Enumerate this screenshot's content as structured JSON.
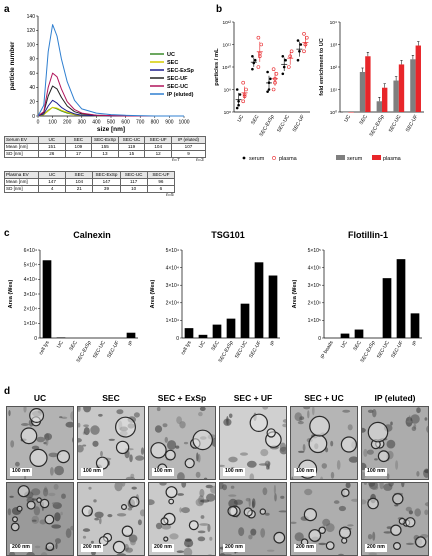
{
  "panels": {
    "a": "a",
    "b": "b",
    "c": "c",
    "d": "d"
  },
  "colors": {
    "UC": "#3b8a2a",
    "SEC": "#d4cc00",
    "SEC-ExSp": "#1f1f8f",
    "SEC-UF": "#222222",
    "SEC-UC": "#b0145a",
    "IP (eluted)": "#2f7fd0",
    "serum": "#000000",
    "plasma": "#e8262a",
    "bar_serum": "#7f7f7f",
    "bar_plasma": "#e8262a"
  },
  "chart_data": [
    {
      "id": "a-nta",
      "type": "line",
      "xlabel": "size [nm]",
      "ylabel": "particle number",
      "xlim": [
        0,
        1000
      ],
      "ylim": [
        0,
        140
      ],
      "x_ticks": [
        0,
        100,
        200,
        300,
        400,
        500,
        600,
        700,
        800,
        900,
        1000
      ],
      "y_ticks": [
        0,
        20,
        40,
        60,
        80,
        100,
        120,
        140
      ],
      "legend_position": "right",
      "x": [
        0,
        40,
        70,
        100,
        130,
        160,
        200,
        250,
        300,
        400,
        500,
        600,
        800,
        1000
      ],
      "series": [
        {
          "name": "UC",
          "values": [
            0,
            2,
            8,
            12,
            10,
            7,
            4,
            2,
            1,
            0.5,
            0,
            0,
            0,
            0
          ]
        },
        {
          "name": "SEC",
          "values": [
            0,
            2,
            7,
            12,
            11,
            8,
            5,
            2,
            1,
            0.5,
            0,
            0,
            0,
            0
          ]
        },
        {
          "name": "SEC-ExSp",
          "values": [
            0,
            3,
            14,
            22,
            18,
            12,
            7,
            3,
            1,
            0.5,
            0,
            0,
            0,
            0
          ]
        },
        {
          "name": "SEC-UF",
          "values": [
            0,
            5,
            28,
            42,
            38,
            26,
            14,
            6,
            3,
            1,
            0.5,
            0,
            0,
            0
          ]
        },
        {
          "name": "SEC-UC",
          "values": [
            0,
            6,
            40,
            60,
            55,
            38,
            20,
            9,
            4,
            1,
            0.5,
            0,
            0,
            0
          ]
        },
        {
          "name": "IP (eluted)",
          "values": [
            0,
            15,
            90,
            128,
            112,
            80,
            48,
            22,
            10,
            4,
            2,
            1,
            0,
            0
          ]
        }
      ]
    },
    {
      "id": "b-particles",
      "type": "scatter",
      "ylabel": "particles / mL",
      "y_scale": "log",
      "y_ticks": [
        "10⁸",
        "10⁹",
        "10¹⁰",
        "10¹¹",
        "10¹²"
      ],
      "categories": [
        "UC",
        "SEC",
        "SEC-ExSp",
        "SEC-UC",
        "SEC-UF"
      ],
      "legend": [
        "serum",
        "plasma"
      ],
      "series": [
        {
          "name": "serum",
          "values": [
            [
              150000000.0,
              300000000.0,
              600000000.0,
              1000000000.0,
              200000000.0
            ],
            [
              8000000000.0,
              15000000000.0,
              20000000000.0,
              30000000000.0
            ],
            [
              800000000.0,
              2000000000.0,
              3000000000.0,
              6000000000.0,
              1000000000.0
            ],
            [
              5000000000.0,
              10000000000.0,
              20000000000.0,
              30000000000.0
            ],
            [
              20000000000.0,
              50000000000.0,
              100000000000.0,
              150000000000.0
            ]
          ]
        },
        {
          "name": "plasma",
          "values": [
            [
              300000000.0,
              600000000.0,
              1000000000.0,
              2000000000.0,
              500000000.0
            ],
            [
              10000000000.0,
              30000000000.0,
              100000000000.0,
              200000000000.0,
              40000000000.0
            ],
            [
              1000000000.0,
              3000000000.0,
              5000000000.0,
              8000000000.0,
              2000000000.0
            ],
            [
              10000000000.0,
              30000000000.0,
              50000000000.0
            ],
            [
              50000000000.0,
              100000000000.0,
              200000000000.0,
              300000000000.0,
              100000000000.0
            ]
          ]
        }
      ]
    },
    {
      "id": "b-fold",
      "type": "bar",
      "ylabel": "fold enrichment to UC",
      "y_scale": "log",
      "y_ticks": [
        "10⁰",
        "10¹",
        "10²",
        "10³",
        "10⁴"
      ],
      "categories": [
        "UC",
        "SEC",
        "SEC-ExSp",
        "SEC-UC",
        "SEC-UF"
      ],
      "legend": [
        "serum",
        "plasma"
      ],
      "series": [
        {
          "name": "serum",
          "values": [
            1,
            60,
            3,
            25,
            220
          ]
        },
        {
          "name": "plasma",
          "values": [
            1,
            300,
            12,
            130,
            900
          ]
        }
      ]
    },
    {
      "id": "c-calnexin",
      "type": "bar",
      "title": "Calnexin",
      "ylabel": "Area (Wes)",
      "ylim": [
        0,
        60000
      ],
      "y_ticks": [
        "0",
        "1×10⁴",
        "2×10⁴",
        "3×10⁴",
        "4×10⁴",
        "5×10⁴",
        "6×10⁴"
      ],
      "categories": [
        "cell lys",
        "UC",
        "SEC",
        "SEC-ExSp",
        "SEC-UC",
        "SEC-UF",
        "IP"
      ],
      "values": [
        53000,
        400,
        0,
        0,
        0,
        0,
        3600
      ]
    },
    {
      "id": "c-tsg101",
      "type": "bar",
      "title": "TSG101",
      "ylabel": "Area (Wes)",
      "ylim": [
        0,
        50000
      ],
      "y_ticks": [
        "0",
        "1×10⁴",
        "2×10⁴",
        "3×10⁴",
        "4×10⁴",
        "5×10⁴"
      ],
      "categories": [
        "cell lys",
        "UC",
        "SEC",
        "SEC-ExSp",
        "SEC-UC",
        "SEC-UF",
        "IP"
      ],
      "values": [
        5600,
        1800,
        7600,
        11000,
        19500,
        43000,
        35500
      ]
    },
    {
      "id": "c-flotillin",
      "type": "bar",
      "title": "Flotillin-1",
      "ylabel": "Area (Wes)",
      "ylim": [
        0,
        500000
      ],
      "y_ticks": [
        "0",
        "1×10⁵",
        "2×10⁵",
        "3×10⁵",
        "4×10⁵",
        "5×10⁵"
      ],
      "categories": [
        "IP beads",
        "UC",
        "SEC",
        "SEC-ExSp",
        "SEC-UC",
        "SEC-UF",
        "IP"
      ],
      "values": [
        0,
        25000,
        48000,
        0,
        340000,
        448000,
        140000
      ]
    }
  ],
  "tables": {
    "serum": {
      "headers": [
        "Serum EV",
        "UC",
        "SEC",
        "SEC-ExSp",
        "SEC-UC",
        "SEC-UF",
        "IP (eluted)"
      ],
      "rows": [
        [
          "Mean [nm]",
          "151",
          "109",
          "155",
          "119",
          "104",
          "107"
        ],
        [
          "SD [nm]",
          "26",
          "17",
          "13",
          "15",
          "12",
          "9"
        ]
      ],
      "n_labels": [
        "n=7",
        "n=3"
      ]
    },
    "plasma": {
      "headers": [
        "Plasma EV",
        "UC",
        "SEC",
        "SEC-ExSp",
        "SEC-UC",
        "SEC-UF"
      ],
      "rows": [
        [
          "Mean [nm]",
          "147",
          "104",
          "147",
          "117",
          "96"
        ],
        [
          "SD [nm]",
          "4",
          "21",
          "39",
          "10",
          "6"
        ]
      ],
      "n_labels": [
        "n=5"
      ]
    }
  },
  "em": {
    "columns": [
      "UC",
      "SEC",
      "SEC + ExSp",
      "SEC + UF",
      "SEC + UC",
      "IP (eluted)"
    ],
    "scale_top": "100 nm",
    "scale_bottom": "200 nm"
  }
}
